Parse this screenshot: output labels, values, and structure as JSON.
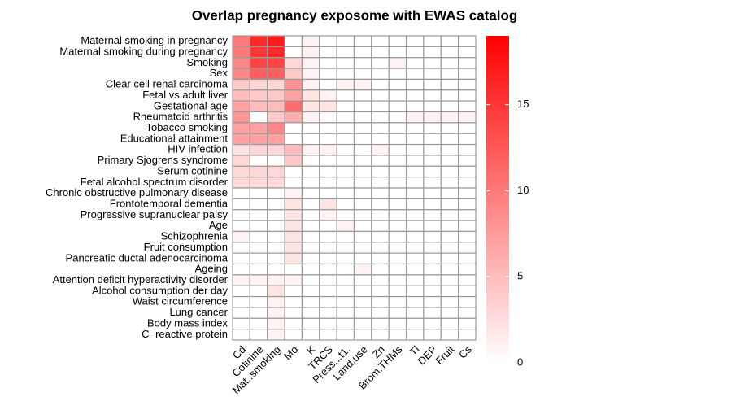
{
  "chart_data": {
    "type": "heatmap",
    "title": "Overlap pregnancy exposome with EWAS catalog",
    "columns": [
      "Cd",
      "Cotinine",
      "Mat..smoking",
      "Mo",
      "K",
      "TRCS",
      "Press...t1.",
      "Land.use",
      "Zn",
      "Brom.THMs",
      "Tl",
      "DEP",
      "Fruit",
      "Cs"
    ],
    "rows": [
      "Maternal smoking in pregnancy",
      "Maternal smoking during pregnancy",
      "Smoking",
      "Sex",
      "Clear cell renal carcinoma",
      "Fetal vs adult liver",
      "Gestational age",
      "Rheumatoid arthritis",
      "Tobacco smoking",
      "Educational attainment",
      "HIV infection",
      "Primary Sjogrens syndrome",
      "Serum cotinine",
      "Fetal alcohol spectrum disorder",
      "Chronic obstructive pulmonary disease",
      "Frontotemporal dementia",
      "Progressive supranuclear palsy",
      "Age",
      "Schizophrenia",
      "Fruit consumption",
      "Pancreatic ductal adenocarcinoma",
      "Ageing",
      "Attention deficit hyperactivity disorder",
      "Alcohol consumption der day",
      "Waist circumference",
      "Lung cancer",
      "Body mass index",
      "C−reactive protein"
    ],
    "values": [
      [
        10,
        16,
        17,
        0,
        1,
        0,
        0,
        0,
        0,
        0,
        0,
        0,
        0,
        0
      ],
      [
        10,
        15,
        16,
        0,
        1,
        0,
        0,
        0,
        0,
        0,
        0,
        0,
        0,
        0
      ],
      [
        9,
        14,
        14,
        3,
        1,
        0,
        0,
        0,
        0,
        1,
        0,
        0,
        0,
        0
      ],
      [
        9,
        12,
        12,
        4,
        1,
        0,
        0,
        0,
        0,
        0,
        0,
        0,
        0,
        0
      ],
      [
        4,
        3,
        3,
        8,
        1,
        0,
        1,
        1,
        0,
        0,
        0,
        0,
        0,
        0
      ],
      [
        5,
        4,
        4,
        7,
        2,
        1,
        0,
        0,
        0,
        0,
        0,
        0,
        0,
        0
      ],
      [
        7,
        5,
        5,
        11,
        2,
        2,
        0,
        0,
        0,
        0,
        0,
        0,
        0,
        0
      ],
      [
        8,
        0,
        4,
        6,
        1,
        0,
        0,
        0,
        0,
        0,
        1,
        1,
        1,
        1
      ],
      [
        7,
        7,
        9,
        0,
        0,
        0,
        0,
        0,
        0,
        0,
        0,
        0,
        0,
        0
      ],
      [
        7,
        7,
        7,
        0,
        0,
        0,
        0,
        0,
        0,
        0,
        0,
        0,
        0,
        0
      ],
      [
        2,
        3,
        3,
        5,
        1,
        1,
        0,
        0,
        1,
        0,
        0,
        0,
        0,
        0
      ],
      [
        3,
        0,
        0,
        4,
        0,
        0,
        0,
        0,
        0,
        0,
        0,
        0,
        0,
        0
      ],
      [
        3,
        3,
        3,
        0,
        0,
        0,
        0,
        0,
        0,
        0,
        0,
        0,
        0,
        0
      ],
      [
        3,
        3,
        3,
        0,
        0,
        0,
        0,
        0,
        0,
        0,
        0,
        0,
        0,
        0
      ],
      [
        0,
        0,
        0,
        1,
        0,
        0,
        0,
        0,
        0,
        0,
        0,
        0,
        0,
        0
      ],
      [
        0,
        0,
        0,
        2,
        0,
        2,
        0,
        0,
        0,
        0,
        0,
        0,
        0,
        0
      ],
      [
        0,
        0,
        0,
        2,
        0,
        1,
        0,
        0,
        0,
        0,
        0,
        0,
        0,
        0
      ],
      [
        0,
        0,
        0,
        2,
        0,
        0,
        1,
        0,
        0,
        0,
        0,
        0,
        0,
        0
      ],
      [
        1,
        0,
        0,
        2,
        0,
        0,
        0,
        0,
        0,
        0,
        0,
        0,
        0,
        0
      ],
      [
        0,
        0,
        0,
        2,
        0,
        0,
        0,
        0,
        0,
        0,
        0,
        0,
        0,
        0
      ],
      [
        0,
        0,
        0,
        2,
        0,
        0,
        0,
        0,
        0,
        0,
        0,
        0,
        0,
        0
      ],
      [
        0,
        0,
        0,
        0,
        0,
        0,
        0,
        1,
        0,
        0,
        0,
        0,
        0,
        0
      ],
      [
        1,
        1,
        1,
        1,
        0,
        0,
        0,
        0,
        0,
        0,
        0,
        0,
        0,
        0
      ],
      [
        0,
        0,
        2,
        0,
        0,
        0,
        0,
        0,
        0,
        0,
        0,
        0,
        0,
        0
      ],
      [
        0,
        0,
        1,
        0,
        0,
        0,
        0,
        0,
        0,
        0,
        0,
        0,
        0,
        0
      ],
      [
        0,
        0,
        1,
        0,
        0,
        0,
        0,
        0,
        0,
        0,
        0,
        0,
        0,
        0
      ],
      [
        0,
        0,
        1,
        0,
        0,
        0,
        0,
        0,
        0,
        0,
        0,
        0,
        0,
        0
      ],
      [
        0,
        0,
        1,
        0,
        0,
        0,
        0,
        0,
        0,
        0,
        0,
        0,
        0,
        0
      ]
    ],
    "color_low": "#ffffff",
    "color_high": "#ff0000",
    "border_color": "#999999",
    "zlim": [
      0,
      19
    ],
    "zticks": [
      0,
      5,
      10,
      15
    ]
  }
}
